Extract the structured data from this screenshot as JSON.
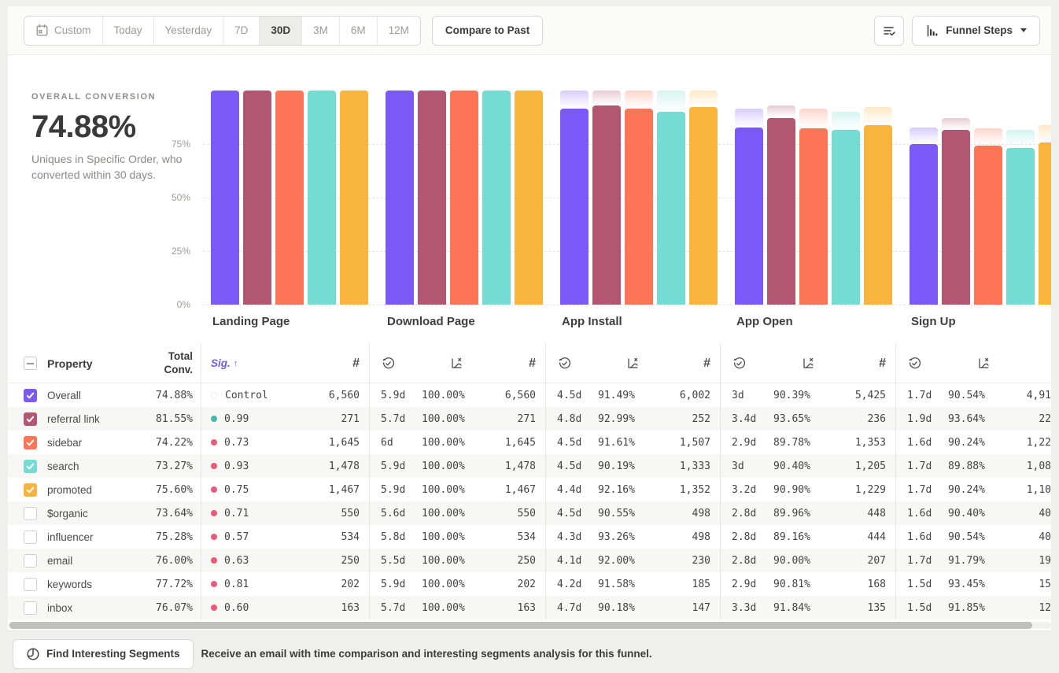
{
  "toolbar": {
    "date_ranges": [
      "Custom",
      "Today",
      "Yesterday",
      "7D",
      "30D",
      "3M",
      "6M",
      "12M"
    ],
    "active_range": "30D",
    "compare_label": "Compare to Past",
    "view_selector_label": "Funnel Steps"
  },
  "summary": {
    "label": "OVERALL CONVERSION",
    "value": "74.88%",
    "description": "Uniques in Specific Order, who converted within 30 days."
  },
  "chart_data": {
    "type": "bar",
    "title": "",
    "xlabel": "",
    "ylabel": "",
    "ylim": [
      0,
      100
    ],
    "grid": "dashed-horizontal",
    "legend": "none (series colors match table checkboxes)",
    "axis_ticks": [
      {
        "label": "75%",
        "value": 75
      },
      {
        "label": "50%",
        "value": 50
      },
      {
        "label": "25%",
        "value": 25
      },
      {
        "label": "0%",
        "value": 0
      }
    ],
    "categories": [
      "Landing Page",
      "Download Page",
      "App Install",
      "App Open",
      "Sign Up"
    ],
    "series": [
      {
        "name": "Overall",
        "color": "#7b59f8",
        "values": [
          100,
          100,
          91.49,
          82.7,
          74.88
        ]
      },
      {
        "name": "referral link",
        "color": "#b25671",
        "values": [
          100,
          100,
          92.99,
          87.08,
          81.55
        ]
      },
      {
        "name": "sidebar",
        "color": "#ff7557",
        "values": [
          100,
          100,
          91.61,
          82.25,
          74.22
        ]
      },
      {
        "name": "search",
        "color": "#74dcd2",
        "values": [
          100,
          100,
          90.19,
          81.53,
          73.27
        ]
      },
      {
        "name": "promoted",
        "color": "#f8b43c",
        "values": [
          100,
          100,
          92.16,
          83.77,
          75.6
        ]
      }
    ],
    "note": "faded cap above each bar marks the previous step's level"
  },
  "table": {
    "header": {
      "property": "Property",
      "total_conv_line1": "Total",
      "total_conv_line2": "Conv.",
      "sig": "Sig.",
      "sort_arrow": "↑",
      "count_symbol": "#"
    },
    "rows": [
      {
        "checked": true,
        "color": "#7b59f8",
        "property": "Overall",
        "total": "74.88%",
        "sig": "Control",
        "sig_dot": "control",
        "landing_count": "6,560",
        "steps": [
          [
            "5.9d",
            "100.00%",
            "6,560"
          ],
          [
            "4.5d",
            "91.49%",
            "6,002"
          ],
          [
            "3d",
            "90.39%",
            "5,425"
          ],
          [
            "1.7d",
            "90.54%",
            "4,91"
          ]
        ]
      },
      {
        "checked": true,
        "color": "#b25671",
        "property": "referral link",
        "total": "81.55%",
        "sig": "0.99",
        "sig_dot": "teal",
        "landing_count": "271",
        "steps": [
          [
            "5.7d",
            "100.00%",
            "271"
          ],
          [
            "4.8d",
            "92.99%",
            "252"
          ],
          [
            "3.4d",
            "93.65%",
            "236"
          ],
          [
            "1.9d",
            "93.64%",
            "22"
          ]
        ]
      },
      {
        "checked": true,
        "color": "#ff7557",
        "property": "sidebar",
        "total": "74.22%",
        "sig": "0.73",
        "sig_dot": "pink",
        "landing_count": "1,645",
        "steps": [
          [
            "6d",
            "100.00%",
            "1,645"
          ],
          [
            "4.5d",
            "91.61%",
            "1,507"
          ],
          [
            "2.9d",
            "89.78%",
            "1,353"
          ],
          [
            "1.6d",
            "90.24%",
            "1,22"
          ]
        ]
      },
      {
        "checked": true,
        "color": "#74dcd2",
        "property": "search",
        "total": "73.27%",
        "sig": "0.93",
        "sig_dot": "pink",
        "landing_count": "1,478",
        "steps": [
          [
            "5.9d",
            "100.00%",
            "1,478"
          ],
          [
            "4.5d",
            "90.19%",
            "1,333"
          ],
          [
            "3d",
            "90.40%",
            "1,205"
          ],
          [
            "1.7d",
            "89.88%",
            "1,08"
          ]
        ]
      },
      {
        "checked": true,
        "color": "#f8b43c",
        "property": "promoted",
        "total": "75.60%",
        "sig": "0.75",
        "sig_dot": "pink",
        "landing_count": "1,467",
        "steps": [
          [
            "5.9d",
            "100.00%",
            "1,467"
          ],
          [
            "4.4d",
            "92.16%",
            "1,352"
          ],
          [
            "3.2d",
            "90.90%",
            "1,229"
          ],
          [
            "1.7d",
            "90.24%",
            "1,10"
          ]
        ]
      },
      {
        "checked": false,
        "color": "",
        "property": "$organic",
        "total": "73.64%",
        "sig": "0.71",
        "sig_dot": "pink",
        "landing_count": "550",
        "steps": [
          [
            "5.6d",
            "100.00%",
            "550"
          ],
          [
            "4.5d",
            "90.55%",
            "498"
          ],
          [
            "2.8d",
            "89.96%",
            "448"
          ],
          [
            "1.6d",
            "90.40%",
            "40"
          ]
        ]
      },
      {
        "checked": false,
        "color": "",
        "property": "influencer",
        "total": "75.28%",
        "sig": "0.57",
        "sig_dot": "pink",
        "landing_count": "534",
        "steps": [
          [
            "5.8d",
            "100.00%",
            "534"
          ],
          [
            "4.3d",
            "93.26%",
            "498"
          ],
          [
            "2.8d",
            "89.16%",
            "444"
          ],
          [
            "1.6d",
            "90.54%",
            "40"
          ]
        ]
      },
      {
        "checked": false,
        "color": "",
        "property": "email",
        "total": "76.00%",
        "sig": "0.63",
        "sig_dot": "pink",
        "landing_count": "250",
        "steps": [
          [
            "5.5d",
            "100.00%",
            "250"
          ],
          [
            "4.1d",
            "92.00%",
            "230"
          ],
          [
            "2.8d",
            "90.00%",
            "207"
          ],
          [
            "1.7d",
            "91.79%",
            "19"
          ]
        ]
      },
      {
        "checked": false,
        "color": "",
        "property": "keywords",
        "total": "77.72%",
        "sig": "0.81",
        "sig_dot": "pink",
        "landing_count": "202",
        "steps": [
          [
            "5.9d",
            "100.00%",
            "202"
          ],
          [
            "4.2d",
            "91.58%",
            "185"
          ],
          [
            "2.9d",
            "90.81%",
            "168"
          ],
          [
            "1.5d",
            "93.45%",
            "15"
          ]
        ]
      },
      {
        "checked": false,
        "color": "",
        "property": "inbox",
        "total": "76.07%",
        "sig": "0.60",
        "sig_dot": "pink",
        "landing_count": "163",
        "steps": [
          [
            "5.7d",
            "100.00%",
            "163"
          ],
          [
            "4.7d",
            "90.18%",
            "147"
          ],
          [
            "3.3d",
            "91.84%",
            "135"
          ],
          [
            "1.5d",
            "91.85%",
            "12"
          ]
        ]
      }
    ]
  },
  "footer": {
    "button_label": "Find Interesting Segments",
    "message": "Receive an email with time comparison and interesting segments analysis for this funnel."
  }
}
